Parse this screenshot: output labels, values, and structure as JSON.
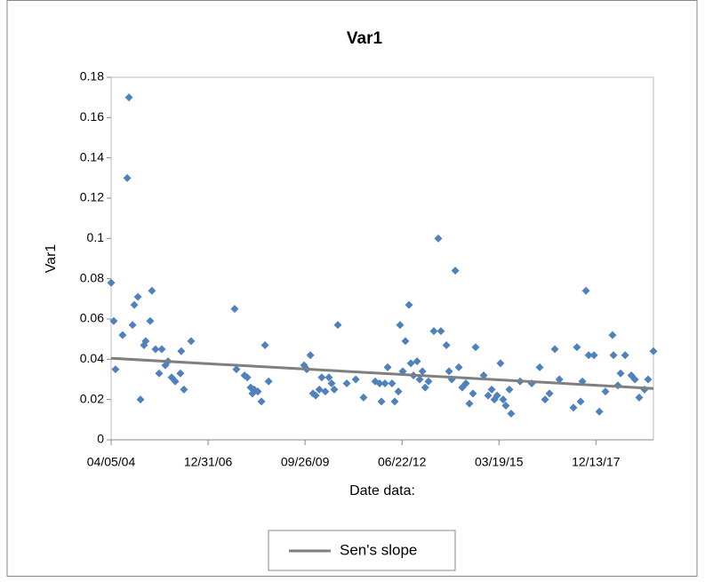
{
  "chart_data": {
    "type": "scatter",
    "title": "Var1",
    "y_label": "Var1",
    "x_label": "Date data:",
    "xlim": [
      "2004-04-05",
      "2019-07-29"
    ],
    "ylim": [
      0,
      0.18
    ],
    "xticks": [
      {
        "value": "2004-04-05",
        "label": "04/05/04"
      },
      {
        "value": "2006-12-31",
        "label": "12/31/06"
      },
      {
        "value": "2009-09-26",
        "label": "09/26/09"
      },
      {
        "value": "2012-06-22",
        "label": "06/22/12"
      },
      {
        "value": "2015-03-19",
        "label": "03/19/15"
      },
      {
        "value": "2017-12-13",
        "label": "12/13/17"
      }
    ],
    "yticks": [
      0,
      0.02,
      0.04,
      0.06,
      0.08,
      0.1,
      0.12,
      0.14,
      0.16,
      0.18
    ],
    "legend": "bottom",
    "series": [
      {
        "type": "scatter",
        "color": "#4f81bd",
        "x": [
          "2004-04-05",
          "2004-05-02",
          "2004-05-20",
          "2004-08-01",
          "2004-09-18",
          "2004-10-06",
          "2004-11-12",
          "2004-11-30",
          "2005-01-06",
          "2005-02-02",
          "2005-03-10",
          "2005-03-27",
          "2005-05-13",
          "2005-05-31",
          "2005-07-07",
          "2005-08-13",
          "2005-09-10",
          "2005-10-16",
          "2005-11-13",
          "2005-12-20",
          "2006-01-26",
          "2006-03-20",
          "2006-03-29",
          "2006-04-26",
          "2006-07-09",
          "2007-10-01",
          "2007-10-19",
          "2008-01-11",
          "2008-02-08",
          "2008-03-14",
          "2008-04-01",
          "2008-04-20",
          "2008-05-27",
          "2008-07-03",
          "2008-08-09",
          "2008-09-15",
          "2009-09-16",
          "2009-10-14",
          "2009-11-20",
          "2009-12-17",
          "2010-01-14",
          "2010-02-20",
          "2010-03-17",
          "2010-04-23",
          "2010-05-30",
          "2010-06-27",
          "2010-07-24",
          "2010-08-30",
          "2010-11-30",
          "2011-03-03",
          "2011-05-22",
          "2011-09-20",
          "2011-11-04",
          "2011-11-23",
          "2011-12-29",
          "2012-01-26",
          "2012-03-11",
          "2012-04-08",
          "2012-05-15",
          "2012-06-02",
          "2012-06-30",
          "2012-07-27",
          "2012-09-02",
          "2012-09-21",
          "2012-10-18",
          "2012-11-24",
          "2012-12-21",
          "2013-01-19",
          "2013-02-16",
          "2013-03-22",
          "2013-05-16",
          "2013-07-01",
          "2013-07-28",
          "2013-09-23",
          "2013-10-20",
          "2013-11-17",
          "2013-12-23",
          "2014-01-29",
          "2014-03-05",
          "2014-04-12",
          "2014-05-18",
          "2014-06-24",
          "2014-07-21",
          "2014-10-12",
          "2014-11-27",
          "2015-01-03",
          "2015-01-31",
          "2015-02-28",
          "2015-04-03",
          "2015-05-01",
          "2015-05-28",
          "2015-07-04",
          "2015-07-22",
          "2015-10-23",
          "2016-02-20",
          "2016-05-12",
          "2016-07-06",
          "2016-08-21",
          "2016-10-15",
          "2016-12-01",
          "2017-04-25",
          "2017-05-31",
          "2017-07-08",
          "2017-07-26",
          "2017-09-01",
          "2017-09-29",
          "2017-11-23",
          "2018-01-17",
          "2018-03-21",
          "2018-06-02",
          "2018-06-12",
          "2018-07-27",
          "2018-08-24",
          "2018-10-10",
          "2018-12-13",
          "2019-01-19",
          "2019-03-04",
          "2019-04-28",
          "2019-06-04",
          "2019-07-29"
        ],
        "values": [
          0.078,
          0.059,
          0.035,
          0.052,
          0.13,
          0.17,
          0.057,
          0.067,
          0.071,
          0.02,
          0.047,
          0.049,
          0.059,
          0.074,
          0.045,
          0.033,
          0.045,
          0.037,
          0.039,
          0.031,
          0.029,
          0.033,
          0.044,
          0.025,
          0.049,
          0.065,
          0.035,
          0.032,
          0.031,
          0.026,
          0.023,
          0.025,
          0.024,
          0.019,
          0.047,
          0.029,
          0.037,
          0.035,
          0.042,
          0.023,
          0.022,
          0.025,
          0.031,
          0.024,
          0.031,
          0.028,
          0.025,
          0.057,
          0.028,
          0.03,
          0.021,
          0.029,
          0.028,
          0.019,
          0.028,
          0.036,
          0.028,
          0.019,
          0.024,
          0.057,
          0.034,
          0.049,
          0.067,
          0.038,
          0.032,
          0.039,
          0.03,
          0.034,
          0.026,
          0.029,
          0.054,
          0.1,
          0.054,
          0.047,
          0.034,
          0.03,
          0.084,
          0.036,
          0.026,
          0.028,
          0.018,
          0.023,
          0.046,
          0.032,
          0.022,
          0.025,
          0.02,
          0.022,
          0.038,
          0.02,
          0.017,
          0.025,
          0.013,
          0.029,
          0.028,
          0.036,
          0.02,
          0.023,
          0.045,
          0.03,
          0.016,
          0.046,
          0.019,
          0.029,
          0.074,
          0.042,
          0.042,
          0.014,
          0.024,
          0.052,
          0.042,
          0.027,
          0.033,
          0.042,
          0.032,
          0.03,
          0.021,
          0.025,
          0.03,
          0.044
        ]
      },
      {
        "type": "line",
        "name": "Sen's slope",
        "color": "#7f7f7f",
        "x": [
          "2004-04-05",
          "2019-07-29"
        ],
        "values": [
          0.0405,
          0.0255
        ]
      }
    ]
  }
}
